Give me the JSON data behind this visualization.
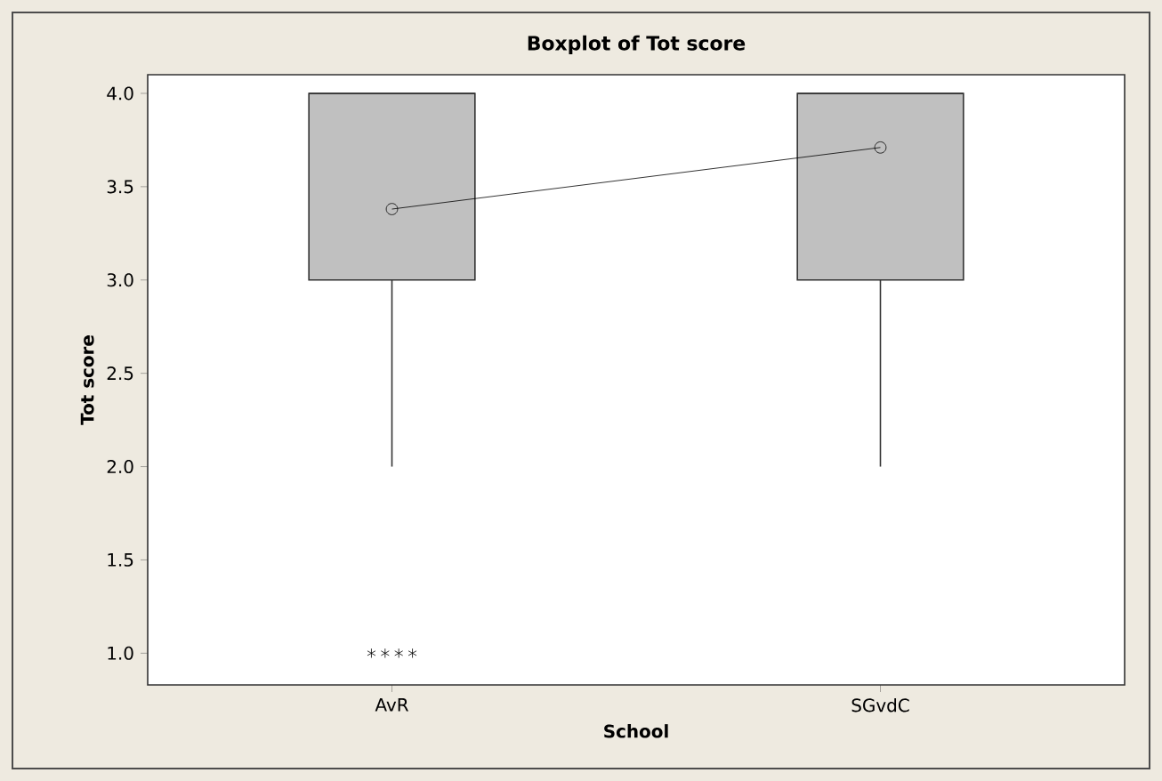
{
  "chart_data": {
    "type": "box",
    "title": "Boxplot of Tot score",
    "xlabel": "School",
    "ylabel": "Tot score",
    "categories": [
      "AvR",
      "SGvdC"
    ],
    "ylim": [
      0.83,
      4.1
    ],
    "yticks": [
      {
        "value": 1,
        "label": "1.0"
      },
      {
        "value": 1.5,
        "label": "1.5"
      },
      {
        "value": 2,
        "label": "2.0"
      },
      {
        "value": 2.5,
        "label": "2.5"
      },
      {
        "value": 3,
        "label": "3.0"
      },
      {
        "value": 3.5,
        "label": "3.5"
      },
      {
        "value": 4,
        "label": "4.0"
      }
    ],
    "series": [
      {
        "color": "#c0c0c0",
        "boxes": [
          {
            "low": 2,
            "q1": 3,
            "median": 4,
            "q3": 4,
            "high": 4,
            "outliers": [
              1,
              1,
              1,
              1
            ]
          },
          {
            "low": 2,
            "q1": 3,
            "median": 4,
            "q3": 4,
            "high": 4
          }
        ]
      },
      {
        "type": "line",
        "color": "#000000",
        "marker": "circle",
        "values": [
          3.38,
          3.71
        ]
      }
    ]
  }
}
